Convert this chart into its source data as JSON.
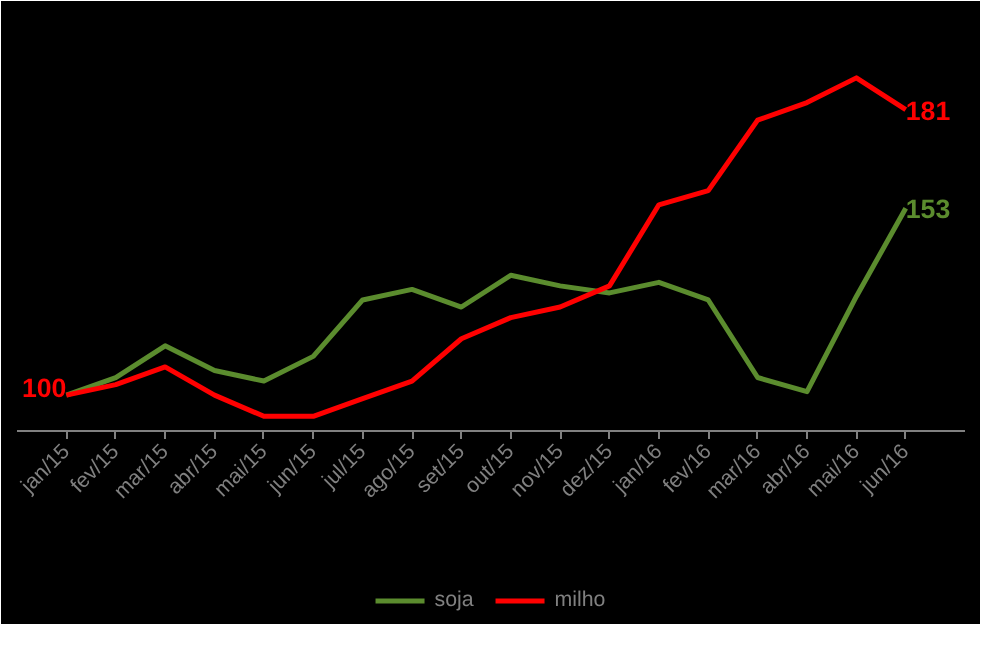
{
  "chart_data": {
    "type": "line",
    "categories": [
      "jan/15",
      "fev/15",
      "mar/15",
      "abr/15",
      "mai/15",
      "jun/15",
      "jul/15",
      "ago/15",
      "set/15",
      "out/15",
      "nov/15",
      "dez/15",
      "jan/16",
      "fev/16",
      "mar/16",
      "abr/16",
      "mai/16",
      "jun/16"
    ],
    "series": [
      {
        "name": "soja",
        "color": "#5b8c2e",
        "values": [
          100,
          105,
          114,
          107,
          104,
          111,
          127,
          130,
          125,
          134,
          131,
          129,
          132,
          127,
          105,
          101,
          128,
          153
        ],
        "value_labels": [
          null,
          null,
          null,
          null,
          null,
          null,
          null,
          null,
          null,
          null,
          null,
          null,
          null,
          null,
          null,
          null,
          null,
          "153"
        ]
      },
      {
        "name": "milho",
        "color": "#ff0000",
        "values": [
          100,
          103,
          108,
          100,
          94,
          94,
          99,
          104,
          116,
          122,
          125,
          131,
          154,
          158,
          178,
          183,
          190,
          181
        ],
        "value_labels": [
          "100",
          null,
          null,
          null,
          null,
          null,
          null,
          null,
          null,
          null,
          null,
          null,
          null,
          null,
          null,
          null,
          null,
          "181"
        ]
      }
    ],
    "ylim": [
      90,
      205
    ],
    "tick_labels": "x",
    "grid": false,
    "legend": "bottom",
    "marker": "none",
    "line_style": "solid"
  }
}
